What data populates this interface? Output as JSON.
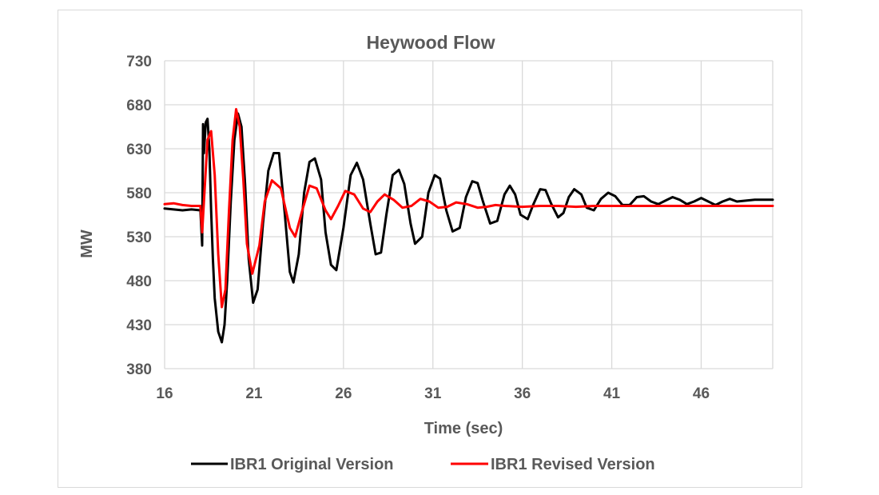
{
  "chart_data": {
    "type": "line",
    "title": "Heywood Flow",
    "xlabel": "Time (sec)",
    "ylabel": "MW",
    "xlim": [
      16,
      50
    ],
    "ylim": [
      380,
      730
    ],
    "x_ticks": [
      16,
      21,
      26,
      31,
      36,
      41,
      46
    ],
    "y_ticks": [
      730,
      680,
      630,
      580,
      530,
      480,
      430,
      380
    ],
    "grid": true,
    "legend_position": "bottom",
    "series": [
      {
        "name": "IBR1 Original Version",
        "color": "#000000",
        "x": [
          16.0,
          16.5,
          17.0,
          17.5,
          18.0,
          18.1,
          18.15,
          18.2,
          18.3,
          18.4,
          18.5,
          18.6,
          18.7,
          18.8,
          19.0,
          19.2,
          19.35,
          19.5,
          19.7,
          19.9,
          20.1,
          20.3,
          20.5,
          20.7,
          20.95,
          21.2,
          21.5,
          21.8,
          22.1,
          22.4,
          22.7,
          23.0,
          23.2,
          23.5,
          23.8,
          24.1,
          24.4,
          24.75,
          25.0,
          25.3,
          25.6,
          26.0,
          26.4,
          26.75,
          27.1,
          27.5,
          27.8,
          28.1,
          28.4,
          28.75,
          29.1,
          29.4,
          29.75,
          30.0,
          30.4,
          30.75,
          31.1,
          31.4,
          31.75,
          32.1,
          32.5,
          32.85,
          33.2,
          33.5,
          33.8,
          34.2,
          34.6,
          35.0,
          35.3,
          35.6,
          35.9,
          36.3,
          36.6,
          37.0,
          37.3,
          37.6,
          38.0,
          38.3,
          38.6,
          38.9,
          39.3,
          39.6,
          40.0,
          40.4,
          40.8,
          41.2,
          41.6,
          42.0,
          42.4,
          42.8,
          43.2,
          43.6,
          44.0,
          44.4,
          44.8,
          45.2,
          45.6,
          46.0,
          46.4,
          46.8,
          47.2,
          47.6,
          48.0,
          48.5,
          49.0,
          49.5,
          50.0
        ],
        "y": [
          562,
          561,
          560,
          561,
          560,
          520,
          658,
          625,
          660,
          664,
          630,
          560,
          505,
          460,
          422,
          410,
          430,
          480,
          570,
          640,
          670,
          655,
          590,
          505,
          455,
          470,
          545,
          605,
          625,
          625,
          560,
          490,
          478,
          510,
          580,
          615,
          619,
          595,
          535,
          498,
          492,
          540,
          600,
          614,
          595,
          545,
          510,
          512,
          555,
          600,
          606,
          590,
          545,
          522,
          530,
          580,
          600,
          596,
          560,
          536,
          540,
          575,
          593,
          591,
          570,
          545,
          548,
          578,
          588,
          578,
          555,
          550,
          566,
          584,
          583,
          568,
          552,
          557,
          575,
          584,
          578,
          563,
          560,
          573,
          580,
          576,
          566,
          566,
          575,
          576,
          570,
          567,
          571,
          575,
          572,
          567,
          570,
          574,
          570,
          566,
          570,
          573,
          570,
          571,
          572,
          572,
          572
        ]
      },
      {
        "name": "IBR1 Revised Version",
        "color": "#ff0000",
        "x": [
          16.0,
          16.5,
          17.0,
          17.5,
          18.0,
          18.1,
          18.2,
          18.4,
          18.6,
          18.8,
          19.0,
          19.2,
          19.4,
          19.6,
          19.8,
          20.0,
          20.2,
          20.4,
          20.6,
          20.9,
          21.3,
          21.6,
          22.0,
          22.5,
          23.0,
          23.3,
          23.7,
          24.1,
          24.5,
          25.0,
          25.3,
          25.7,
          26.1,
          26.6,
          27.1,
          27.5,
          27.9,
          28.3,
          28.8,
          29.3,
          29.8,
          30.3,
          30.8,
          31.3,
          31.8,
          32.3,
          32.9,
          33.5,
          34.0,
          34.5,
          35.0,
          36.0,
          37.0,
          38.0,
          39.0,
          40.0,
          41.0,
          42.0,
          44.0,
          46.0,
          48.0,
          50.0
        ],
        "y": [
          567,
          568,
          566,
          565,
          565,
          535,
          570,
          640,
          650,
          600,
          510,
          450,
          470,
          560,
          640,
          675,
          655,
          595,
          522,
          488,
          520,
          570,
          594,
          585,
          540,
          530,
          560,
          588,
          585,
          560,
          550,
          565,
          582,
          578,
          562,
          558,
          570,
          578,
          572,
          563,
          565,
          573,
          570,
          563,
          564,
          569,
          567,
          563,
          564,
          566,
          565,
          564,
          565,
          565,
          564,
          565,
          565,
          565,
          565,
          565,
          565,
          565
        ]
      }
    ]
  }
}
